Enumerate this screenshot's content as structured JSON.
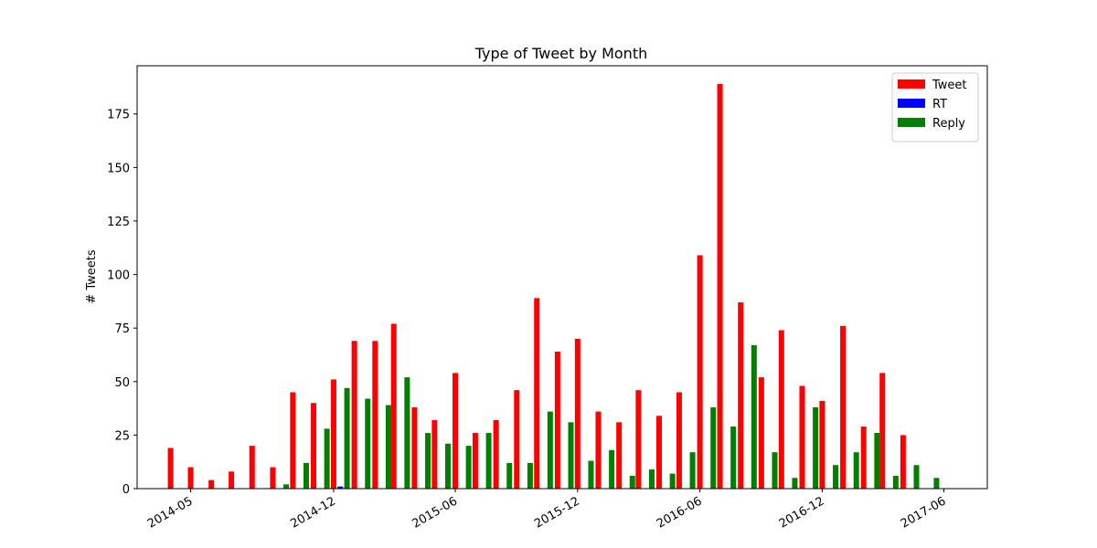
{
  "chart_data": {
    "type": "bar",
    "title": "Type of Tweet by Month",
    "xlabel": "",
    "ylabel": "# Tweets",
    "ylim": [
      0,
      197.5
    ],
    "xlim": [
      "2014-02-10",
      "2017-08-05"
    ],
    "yticks": [
      0,
      25,
      50,
      75,
      100,
      125,
      150,
      175
    ],
    "xticks": [
      {
        "date": "2014-05-01",
        "label": "2014-05"
      },
      {
        "date": "2014-12-01",
        "label": "2014-12"
      },
      {
        "date": "2015-06-01",
        "label": "2015-06"
      },
      {
        "date": "2015-12-01",
        "label": "2015-12"
      },
      {
        "date": "2016-06-01",
        "label": "2016-06"
      },
      {
        "date": "2016-12-01",
        "label": "2016-12"
      },
      {
        "date": "2017-06-01",
        "label": "2017-06"
      }
    ],
    "legend": {
      "position": "top-right"
    },
    "grid": false,
    "series": [
      {
        "name": "Tweet",
        "color": "#ff0000",
        "points": [
          {
            "x": "2014-04-01",
            "y": 19
          },
          {
            "x": "2014-05-01",
            "y": 10
          },
          {
            "x": "2014-06-01",
            "y": 4
          },
          {
            "x": "2014-07-01",
            "y": 8
          },
          {
            "x": "2014-08-01",
            "y": 20
          },
          {
            "x": "2014-09-01",
            "y": 10
          },
          {
            "x": "2014-10-01",
            "y": 45
          },
          {
            "x": "2014-11-01",
            "y": 40
          },
          {
            "x": "2014-12-01",
            "y": 51
          },
          {
            "x": "2015-01-01",
            "y": 69
          },
          {
            "x": "2015-02-01",
            "y": 69
          },
          {
            "x": "2015-03-01",
            "y": 77
          },
          {
            "x": "2015-04-01",
            "y": 38
          },
          {
            "x": "2015-05-01",
            "y": 32
          },
          {
            "x": "2015-06-01",
            "y": 54
          },
          {
            "x": "2015-07-01",
            "y": 26
          },
          {
            "x": "2015-08-01",
            "y": 32
          },
          {
            "x": "2015-09-01",
            "y": 46
          },
          {
            "x": "2015-10-01",
            "y": 89
          },
          {
            "x": "2015-11-01",
            "y": 64
          },
          {
            "x": "2015-12-01",
            "y": 70
          },
          {
            "x": "2016-01-01",
            "y": 36
          },
          {
            "x": "2016-02-01",
            "y": 31
          },
          {
            "x": "2016-03-01",
            "y": 46
          },
          {
            "x": "2016-04-01",
            "y": 34
          },
          {
            "x": "2016-05-01",
            "y": 45
          },
          {
            "x": "2016-06-01",
            "y": 109
          },
          {
            "x": "2016-07-01",
            "y": 189
          },
          {
            "x": "2016-08-01",
            "y": 87
          },
          {
            "x": "2016-09-01",
            "y": 52
          },
          {
            "x": "2016-10-01",
            "y": 74
          },
          {
            "x": "2016-11-01",
            "y": 48
          },
          {
            "x": "2016-12-01",
            "y": 41
          },
          {
            "x": "2017-01-01",
            "y": 76
          },
          {
            "x": "2017-02-01",
            "y": 29
          },
          {
            "x": "2017-03-01",
            "y": 54
          },
          {
            "x": "2017-04-01",
            "y": 25
          }
        ]
      },
      {
        "name": "RT",
        "color": "#0000ff",
        "points": [
          {
            "x": "2014-12-11",
            "y": 1
          }
        ]
      },
      {
        "name": "Reply",
        "color": "#008000",
        "points": [
          {
            "x": "2014-09-21",
            "y": 2
          },
          {
            "x": "2014-10-21",
            "y": 12
          },
          {
            "x": "2014-11-21",
            "y": 28
          },
          {
            "x": "2014-12-21",
            "y": 47
          },
          {
            "x": "2015-01-21",
            "y": 42
          },
          {
            "x": "2015-02-21",
            "y": 39
          },
          {
            "x": "2015-03-21",
            "y": 52
          },
          {
            "x": "2015-04-21",
            "y": 26
          },
          {
            "x": "2015-05-21",
            "y": 21
          },
          {
            "x": "2015-06-21",
            "y": 20
          },
          {
            "x": "2015-07-21",
            "y": 26
          },
          {
            "x": "2015-08-21",
            "y": 12
          },
          {
            "x": "2015-09-21",
            "y": 12
          },
          {
            "x": "2015-10-21",
            "y": 36
          },
          {
            "x": "2015-11-21",
            "y": 31
          },
          {
            "x": "2015-12-21",
            "y": 13
          },
          {
            "x": "2016-01-21",
            "y": 18
          },
          {
            "x": "2016-02-21",
            "y": 6
          },
          {
            "x": "2016-03-21",
            "y": 9
          },
          {
            "x": "2016-04-21",
            "y": 7
          },
          {
            "x": "2016-05-21",
            "y": 17
          },
          {
            "x": "2016-06-21",
            "y": 38
          },
          {
            "x": "2016-07-21",
            "y": 29
          },
          {
            "x": "2016-08-21",
            "y": 67
          },
          {
            "x": "2016-09-21",
            "y": 17
          },
          {
            "x": "2016-10-21",
            "y": 5
          },
          {
            "x": "2016-11-21",
            "y": 38
          },
          {
            "x": "2016-12-21",
            "y": 11
          },
          {
            "x": "2017-01-21",
            "y": 17
          },
          {
            "x": "2017-02-21",
            "y": 26
          },
          {
            "x": "2017-03-21",
            "y": 6
          },
          {
            "x": "2017-04-21",
            "y": 11
          },
          {
            "x": "2017-05-21",
            "y": 5
          }
        ]
      }
    ]
  }
}
